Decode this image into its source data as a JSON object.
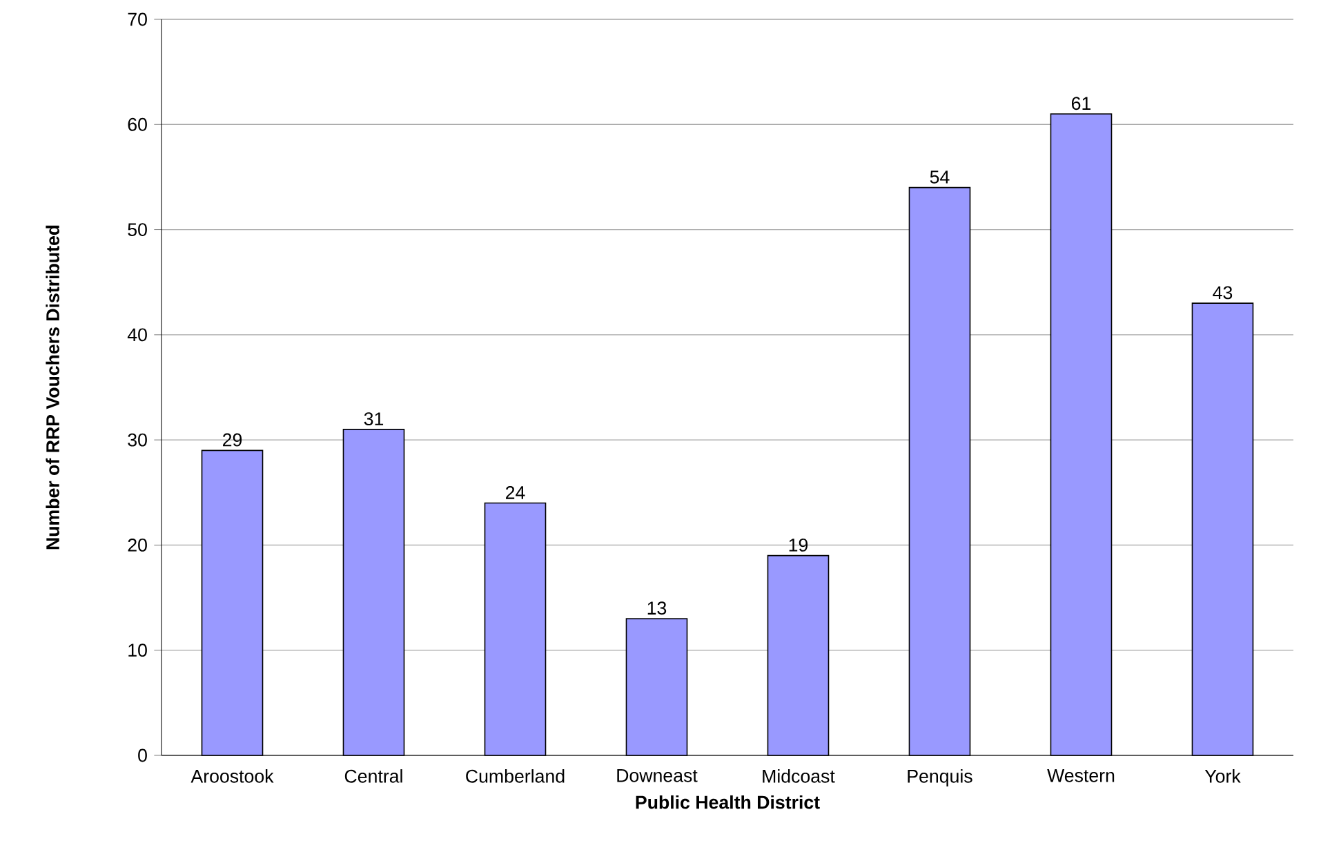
{
  "chart_data": {
    "type": "bar",
    "xlabel": "Public Health District",
    "ylabel": "Number of RRP Vouchers Distributed",
    "categories": [
      "Aroostook",
      "Central",
      "Cumberland",
      "Downeast",
      "Midcoast",
      "Penquis",
      "Western",
      "York"
    ],
    "values": [
      29,
      31,
      24,
      13,
      19,
      54,
      61,
      43
    ],
    "color": "#9999ff",
    "ylim": [
      0,
      70
    ],
    "yticks": [
      0,
      10,
      20,
      30,
      40,
      50,
      60,
      70
    ],
    "grid": "y",
    "data_labels": true
  }
}
